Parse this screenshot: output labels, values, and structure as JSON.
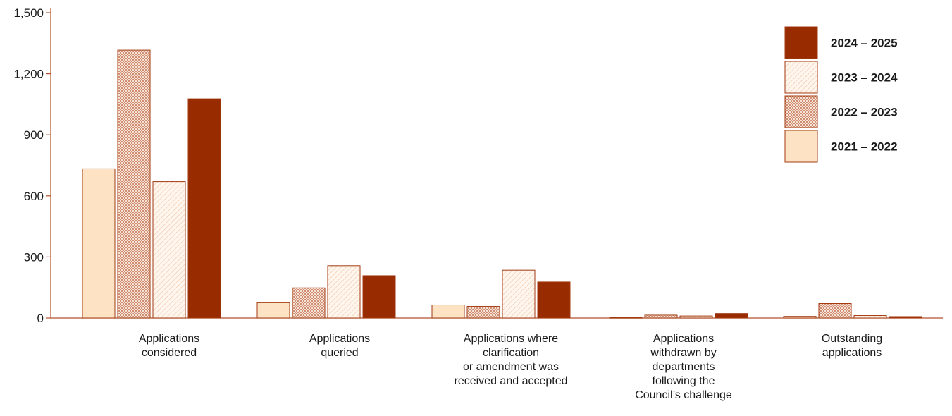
{
  "chart_data": {
    "type": "bar",
    "categories": [
      [
        "Applications",
        "considered"
      ],
      [
        "Applications",
        "queried"
      ],
      [
        "Applications where",
        "clarification",
        "or amendment was",
        "received and accepted"
      ],
      [
        "Applications",
        "withdrawn by",
        "departments",
        "following the",
        "Council’s challenge"
      ],
      [
        "Outstanding",
        "applications"
      ]
    ],
    "series": [
      {
        "name": "2021 – 2022",
        "values": [
          733,
          75,
          64,
          3,
          8
        ],
        "color": "#fde2c3",
        "pattern": "solid-light"
      },
      {
        "name": "2022 – 2023",
        "values": [
          1316,
          148,
          57,
          14,
          71
        ],
        "color": "#f3d5c4",
        "pattern": "dots"
      },
      {
        "name": "2023 – 2024",
        "values": [
          670,
          257,
          235,
          10,
          12
        ],
        "color": "#fdf3ea",
        "pattern": "diagonal"
      },
      {
        "name": "2024 – 2025",
        "values": [
          1077,
          208,
          177,
          22,
          7
        ],
        "color": "#992b00",
        "pattern": "solid-dark"
      }
    ],
    "legend_order": [
      "2024 – 2025",
      "2023 – 2024",
      "2022 – 2023",
      "2021 – 2022"
    ],
    "y_ticks": [
      "0",
      "300",
      "600",
      "900",
      "1,200",
      "1,500"
    ],
    "ylim": [
      0,
      1500
    ],
    "legend_position": "top-right",
    "grid": false,
    "colors": {
      "axis": "#b5522a",
      "bar_outline": "#a33b10"
    }
  }
}
